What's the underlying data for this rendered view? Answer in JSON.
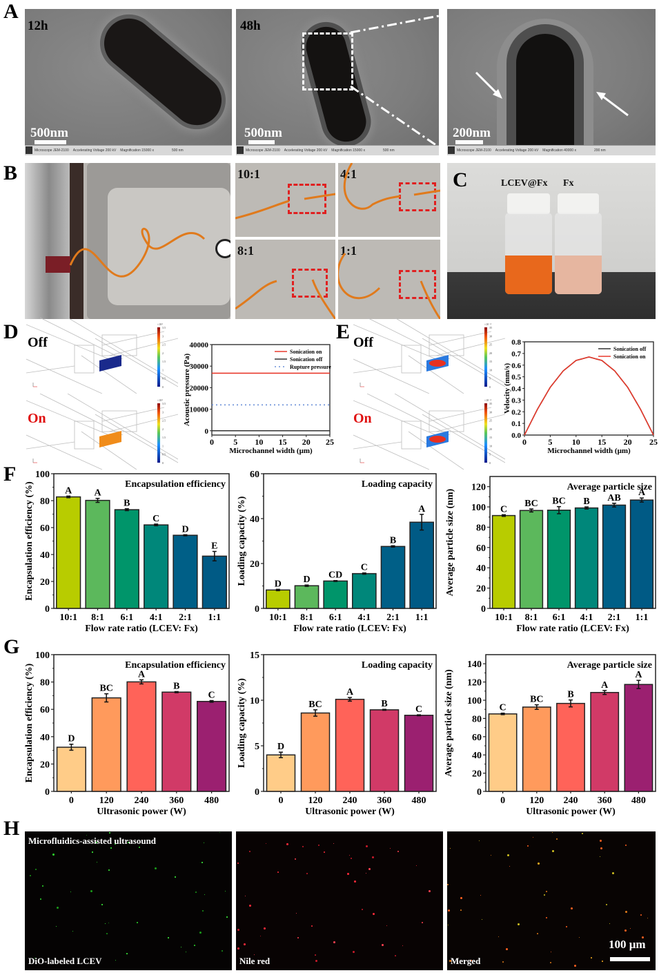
{
  "panels": {
    "A": {
      "letter": "A",
      "images": [
        {
          "time_label": "12h",
          "scale_label": "500nm",
          "info": [
            "Microscope JEM-2100",
            "Accelerating Voltage 200 kV",
            "Magnification 15000 x",
            "500 nm"
          ]
        },
        {
          "time_label": "48h",
          "scale_label": "500nm",
          "info": [
            "Microscope JEM-2100",
            "Accelerating Voltage 200 kV",
            "Magnification 15000 x",
            "500 nm"
          ]
        },
        {
          "time_label": "",
          "scale_label": "200nm",
          "info": [
            "Microscope JEM-2100",
            "Accelerating Voltage 200 kV",
            "Magnification 40000 x",
            "200 nm"
          ]
        }
      ]
    },
    "B": {
      "letter": "B",
      "ratios": [
        "10:1",
        "4:1",
        "8:1",
        "1:1"
      ]
    },
    "C": {
      "letter": "C",
      "vial_labels": [
        "LCEV@Fx",
        "Fx"
      ]
    },
    "D": {
      "letter": "D",
      "off_label": "Off",
      "on_label": "On",
      "colorbar_ticks": [
        "0",
        "0.5",
        "1",
        "1.5",
        "2",
        "2.5",
        "3",
        "3.5"
      ],
      "colorbar_exp": "×10⁴"
    },
    "E": {
      "letter": "E",
      "off_label": "Off",
      "on_label": "On",
      "colorbar_ticks": [
        "0",
        "5",
        "10",
        "15",
        "20",
        "25",
        "30",
        "35"
      ],
      "colorbar_exp": "×10⁻⁴"
    },
    "F": {
      "letter": "F"
    },
    "G": {
      "letter": "G"
    },
    "H": {
      "letter": "H",
      "title": "Microfluidics-assisted ultrasound",
      "labels": [
        "DiO-labeled LCEV",
        "Nile red",
        "Merged"
      ],
      "scale_label": "100 μm"
    }
  },
  "colors": {
    "ratio_bars": [
      "#b8cc00",
      "#5cb85c",
      "#00956a",
      "#00877a",
      "#005f87",
      "#005a85"
    ],
    "power_bars": [
      "#ffcc88",
      "#ff9a5c",
      "#ff6359",
      "#d13a67",
      "#9b2070"
    ],
    "sonication_on": "#e8392b",
    "sonication_off": "#333333",
    "rupture": "#6a8fd8"
  },
  "chart_data": [
    {
      "id": "D-line",
      "type": "line",
      "title": "",
      "xlabel": "Microchannel width (μm)",
      "ylabel": "Acoustic pressure (Pa)",
      "xlim": [
        0,
        25
      ],
      "ylim": [
        -2000,
        40000
      ],
      "xticks": [
        0,
        5,
        10,
        15,
        20,
        25
      ],
      "yticks": [
        0,
        10000,
        20000,
        30000,
        40000
      ],
      "legend_position": "top-right",
      "series": [
        {
          "name": "Sonication on",
          "style": "solid",
          "color": "#e8392b",
          "x": [
            0,
            25
          ],
          "y": [
            26700,
            26700
          ]
        },
        {
          "name": "Sonication off",
          "style": "solid",
          "color": "#333333",
          "x": [
            0,
            25
          ],
          "y": [
            0,
            0
          ]
        },
        {
          "name": "Rupture pressure",
          "style": "dotted",
          "color": "#6a8fd8",
          "x": [
            0,
            25
          ],
          "y": [
            12000,
            12000
          ]
        }
      ]
    },
    {
      "id": "E-line",
      "type": "line",
      "title": "",
      "xlabel": "Microchannel width (μm)",
      "ylabel": "Velocity (mm/s)",
      "xlim": [
        0,
        25
      ],
      "ylim": [
        0,
        0.8
      ],
      "xticks": [
        0,
        5,
        10,
        15,
        20,
        25
      ],
      "yticks": [
        0.0,
        0.1,
        0.2,
        0.3,
        0.4,
        0.5,
        0.6,
        0.7,
        0.8
      ],
      "legend_position": "top-right",
      "series": [
        {
          "name": "Sonication off",
          "style": "solid",
          "color": "#333333",
          "x": [
            0,
            2.5,
            5,
            7.5,
            10,
            12.5,
            15,
            17.5,
            20,
            22.5,
            25
          ],
          "y": [
            0,
            0.22,
            0.41,
            0.55,
            0.64,
            0.67,
            0.64,
            0.55,
            0.41,
            0.22,
            0
          ]
        },
        {
          "name": "Sonication on",
          "style": "solid",
          "color": "#e8392b",
          "x": [
            0,
            2.5,
            5,
            7.5,
            10,
            12.5,
            15,
            17.5,
            20,
            22.5,
            25
          ],
          "y": [
            0,
            0.22,
            0.41,
            0.55,
            0.64,
            0.67,
            0.64,
            0.55,
            0.41,
            0.22,
            0
          ]
        }
      ]
    },
    {
      "id": "F1",
      "type": "bar",
      "title": "Encapsulation efficiency",
      "xlabel": "Flow rate ratio (LCEV: Fx)",
      "ylabel": "Encapsulation efficiency (%)",
      "categories": [
        "10:1",
        "8:1",
        "6:1",
        "4:1",
        "2:1",
        "1:1"
      ],
      "values": [
        82.8,
        80.2,
        73.3,
        62.0,
        54.3,
        38.8
      ],
      "errors": [
        0.6,
        1.5,
        0.7,
        0.6,
        0.4,
        3.5
      ],
      "letters": [
        "A",
        "A",
        "B",
        "C",
        "D",
        "E"
      ],
      "ylim": [
        0,
        100
      ],
      "yticks": [
        0,
        20,
        40,
        60,
        80,
        100
      ],
      "color_key": "ratio_bars"
    },
    {
      "id": "F2",
      "type": "bar",
      "title": "Loading capacity",
      "xlabel": "Flow rate ratio (LCEV: Fx)",
      "ylabel": "Loading capacity (%)",
      "categories": [
        "10:1",
        "8:1",
        "6:1",
        "4:1",
        "2:1",
        "1:1"
      ],
      "values": [
        8.2,
        10.1,
        12.2,
        15.5,
        27.6,
        38.4
      ],
      "errors": [
        0.3,
        0.3,
        0.2,
        0.3,
        0.3,
        3.5
      ],
      "letters": [
        "D",
        "D",
        "CD",
        "C",
        "B",
        "A"
      ],
      "ylim": [
        0,
        60
      ],
      "yticks": [
        0,
        20,
        40,
        60
      ],
      "color_key": "ratio_bars"
    },
    {
      "id": "F3",
      "type": "bar",
      "title": "Average particle size",
      "xlabel": "Flow rate ratio (LCEV: Fx)",
      "ylabel": "Average particle size (nm)",
      "categories": [
        "10:1",
        "8:1",
        "6:1",
        "4:1",
        "2:1",
        "1:1"
      ],
      "values": [
        91.5,
        96.5,
        96.8,
        99.0,
        101.8,
        106.8
      ],
      "errors": [
        0.8,
        1.5,
        3.5,
        1.0,
        1.8,
        2.0
      ],
      "letters": [
        "C",
        "BC",
        "BC",
        "B",
        "AB",
        "A"
      ],
      "ylim": [
        0,
        130
      ],
      "yticks": [
        0,
        20,
        40,
        60,
        80,
        100,
        120
      ],
      "color_key": "ratio_bars"
    },
    {
      "id": "G1",
      "type": "bar",
      "title": "Encapsulation efficiency",
      "xlabel": "Ultrasonic power (W)",
      "ylabel": "Encapsulation efficiency (%)",
      "categories": [
        "0",
        "120",
        "240",
        "360",
        "480"
      ],
      "values": [
        32.3,
        68.4,
        80.1,
        72.6,
        65.8
      ],
      "errors": [
        2.2,
        3.0,
        1.5,
        0.4,
        0.6
      ],
      "letters": [
        "D",
        "BC",
        "A",
        "B",
        "C"
      ],
      "ylim": [
        0,
        100
      ],
      "yticks": [
        0,
        20,
        40,
        60,
        80,
        100
      ],
      "color_key": "power_bars"
    },
    {
      "id": "G2",
      "type": "bar",
      "title": "Loading capacity",
      "xlabel": "Ultrasonic power (W)",
      "ylabel": "Loading capacity (%)",
      "categories": [
        "0",
        "120",
        "240",
        "360",
        "480"
      ],
      "values": [
        4.0,
        8.6,
        10.1,
        8.95,
        8.35
      ],
      "errors": [
        0.3,
        0.35,
        0.2,
        0.05,
        0.05
      ],
      "letters": [
        "D",
        "BC",
        "A",
        "B",
        "C"
      ],
      "ylim": [
        0,
        15
      ],
      "yticks": [
        0,
        5,
        10,
        15
      ],
      "color_key": "power_bars"
    },
    {
      "id": "G3",
      "type": "bar",
      "title": "Average particle size",
      "xlabel": "Ultrasonic power (W)",
      "ylabel": "Average particle size (nm)",
      "categories": [
        "0",
        "120",
        "240",
        "360",
        "480"
      ],
      "values": [
        85.0,
        92.5,
        96.5,
        108.5,
        117.3
      ],
      "errors": [
        0.8,
        2.5,
        3.8,
        2.2,
        4.5
      ],
      "letters": [
        "C",
        "BC",
        "B",
        "A",
        "A"
      ],
      "ylim": [
        0,
        150
      ],
      "yticks": [
        0,
        20,
        40,
        60,
        80,
        100,
        120,
        140
      ],
      "color_key": "power_bars"
    }
  ]
}
